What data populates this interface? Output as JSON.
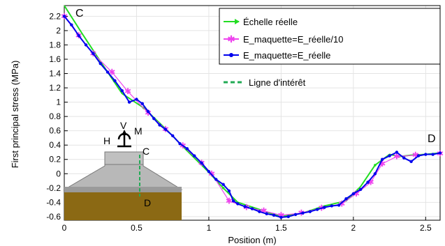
{
  "chart_data": {
    "type": "line",
    "xlabel": "Position (m)",
    "ylabel": "First principal stress (MPa)",
    "xlim": [
      0,
      2.6
    ],
    "ylim": [
      -0.65,
      2.35
    ],
    "x_ticks": [
      "0",
      "0.5",
      "1",
      "1.5",
      "2",
      "2.5"
    ],
    "y_ticks": [
      "-0.6",
      "-0.4",
      "-0.2",
      "0",
      "0.2",
      "0.4",
      "0.6",
      "0.8",
      "1",
      "1.2",
      "1.4",
      "1.6",
      "1.8",
      "2",
      "2.2"
    ],
    "x_tick_values": [
      0,
      0.5,
      1,
      1.5,
      2,
      2.5
    ],
    "y_tick_values": [
      -0.6,
      -0.4,
      -0.2,
      0,
      0.2,
      0.4,
      0.6,
      0.8,
      1,
      1.2,
      1.4,
      1.6,
      1.8,
      2,
      2.2
    ],
    "grid": true,
    "legend_position": "top-right",
    "series": [
      {
        "name": "Échelle réelle",
        "color": "#22dd22",
        "marker": "arrow",
        "x": [
          0,
          0.12,
          0.25,
          0.4,
          0.55,
          0.7,
          0.85,
          1.0,
          1.1,
          1.2,
          1.35,
          1.5,
          1.65,
          1.8,
          1.95,
          2.05,
          2.15,
          2.25,
          2.32,
          2.4,
          2.5,
          2.6
        ],
        "y": [
          2.35,
          1.97,
          1.57,
          1.12,
          0.92,
          0.63,
          0.32,
          0.02,
          -0.2,
          -0.4,
          -0.5,
          -0.6,
          -0.55,
          -0.45,
          -0.38,
          -0.18,
          0.12,
          0.27,
          0.24,
          0.26,
          0.27,
          0.29
        ]
      },
      {
        "name": "E_maquette=E_réelle/10",
        "color": "#ee44ee",
        "marker": "star",
        "x": [
          0,
          0.1,
          0.2,
          0.33,
          0.44,
          0.58,
          0.7,
          0.82,
          0.95,
          1.02,
          1.14,
          1.26,
          1.38,
          1.5,
          1.64,
          1.78,
          1.92,
          2.02,
          2.12,
          2.2,
          2.3,
          2.43,
          2.6
        ],
        "y": [
          2.2,
          1.93,
          1.68,
          1.42,
          1.15,
          0.85,
          0.62,
          0.39,
          0.15,
          0.0,
          -0.38,
          -0.47,
          -0.52,
          -0.58,
          -0.55,
          -0.48,
          -0.42,
          -0.28,
          -0.12,
          0.14,
          0.24,
          0.26,
          0.28
        ]
      },
      {
        "name": "E_maquette=E_réelle",
        "color": "#0000ee",
        "marker": "dot",
        "x": [
          0,
          0.05,
          0.1,
          0.15,
          0.2,
          0.25,
          0.3,
          0.35,
          0.4,
          0.45,
          0.5,
          0.54,
          0.58,
          0.62,
          0.66,
          0.7,
          0.75,
          0.8,
          0.85,
          0.9,
          0.95,
          1.0,
          1.05,
          1.1,
          1.14,
          1.17,
          1.2,
          1.25,
          1.3,
          1.35,
          1.4,
          1.45,
          1.5,
          1.55,
          1.6,
          1.65,
          1.7,
          1.75,
          1.8,
          1.85,
          1.9,
          1.95,
          2.0,
          2.05,
          2.1,
          2.15,
          2.2,
          2.25,
          2.3,
          2.35,
          2.4,
          2.45,
          2.5,
          2.55,
          2.6
        ],
        "y": [
          2.2,
          2.08,
          1.93,
          1.8,
          1.68,
          1.54,
          1.42,
          1.3,
          1.16,
          1.0,
          1.04,
          0.98,
          0.87,
          0.77,
          0.68,
          0.62,
          0.53,
          0.42,
          0.35,
          0.25,
          0.15,
          0.03,
          -0.08,
          -0.15,
          -0.24,
          -0.38,
          -0.42,
          -0.46,
          -0.49,
          -0.53,
          -0.56,
          -0.58,
          -0.61,
          -0.6,
          -0.57,
          -0.55,
          -0.53,
          -0.5,
          -0.47,
          -0.45,
          -0.44,
          -0.35,
          -0.28,
          -0.22,
          -0.12,
          0.0,
          0.2,
          0.25,
          0.3,
          0.22,
          0.17,
          0.25,
          0.27,
          0.27,
          0.29
        ]
      }
    ],
    "annotations": {
      "ligne": "Ligne d'intérêt",
      "c_main": "C",
      "d_main": "D",
      "inset_v": "V",
      "inset_m": "M",
      "inset_h": "H",
      "inset_c": "C",
      "inset_d": "D"
    }
  }
}
